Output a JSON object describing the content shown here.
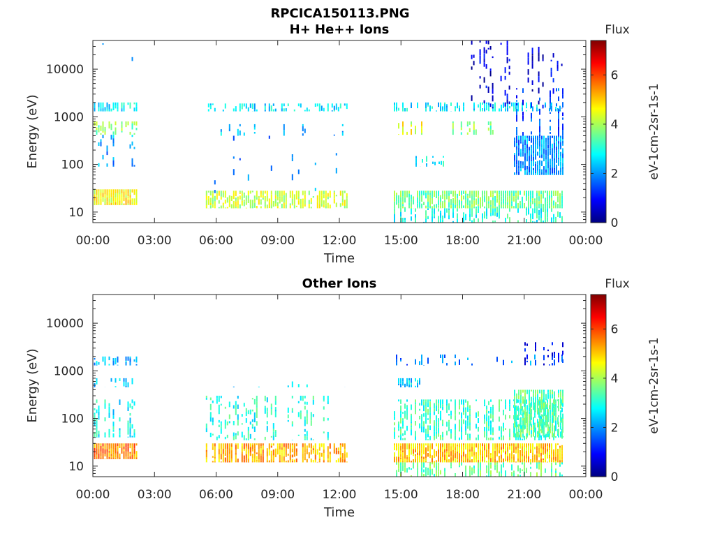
{
  "figure_title": "RPCICA150113.PNG",
  "chart_data": [
    {
      "type": "heatmap",
      "title": "H+ He++ Ions",
      "xlabel": "Time",
      "ylabel": "Energy (eV)",
      "x_ticks": [
        "00:00",
        "03:00",
        "06:00",
        "09:00",
        "12:00",
        "15:00",
        "18:00",
        "21:00",
        "00:00"
      ],
      "xlim_hours": [
        0,
        24
      ],
      "y_scale": "log",
      "ylim": [
        6,
        40000
      ],
      "y_ticks": [
        {
          "value": 10,
          "label": "10"
        },
        {
          "value": 100,
          "label": "100"
        },
        {
          "value": 1000,
          "label": "1000"
        },
        {
          "value": 10000,
          "label": "10000"
        }
      ],
      "colorbar": {
        "title": "Flux",
        "label": "eV-1cm-2sr-1s-1",
        "range": [
          0,
          7.4
        ],
        "ticks": [
          {
            "value": 0,
            "label": "0"
          },
          {
            "value": 2,
            "label": "2"
          },
          {
            "value": 4,
            "label": "4"
          },
          {
            "value": 6,
            "label": "6"
          }
        ],
        "colormap": "jet"
      },
      "data_intervals_hours": [
        [
          0.05,
          2.1
        ],
        [
          5.5,
          12.35
        ],
        [
          14.65,
          22.85
        ]
      ],
      "bands": [
        {
          "t": [
            0.05,
            2.1
          ],
          "e": [
            14,
            30
          ],
          "flux": 4.6,
          "density": 0.95
        },
        {
          "t": [
            0.05,
            2.1
          ],
          "e": [
            420,
            800
          ],
          "flux": 3.7,
          "density": 0.6
        },
        {
          "t": [
            0.05,
            2.1
          ],
          "e": [
            1300,
            2000
          ],
          "flux": 2.7,
          "density": 0.75
        },
        {
          "t": [
            0.05,
            2.1
          ],
          "e": [
            90,
            420
          ],
          "flux": 2.1,
          "density": 0.3
        },
        {
          "t": [
            0.05,
            2.1
          ],
          "e": [
            2500,
            35000
          ],
          "flux": 1.7,
          "density": 0.12
        },
        {
          "t": [
            5.5,
            12.35
          ],
          "e": [
            12,
            28
          ],
          "flux": 4.2,
          "density": 0.7
        },
        {
          "t": [
            5.5,
            12.35
          ],
          "e": [
            1300,
            1900
          ],
          "flux": 2.6,
          "density": 0.55
        },
        {
          "t": [
            5.5,
            12.35
          ],
          "e": [
            400,
            700
          ],
          "flux": 2.4,
          "density": 0.2
        },
        {
          "t": [
            5.5,
            12.35
          ],
          "e": [
            25,
            400
          ],
          "flux": 2.0,
          "density": 0.08
        },
        {
          "t": [
            14.65,
            22.85
          ],
          "e": [
            12,
            28
          ],
          "flux": 3.6,
          "density": 0.85
        },
        {
          "t": [
            14.65,
            22.85
          ],
          "e": [
            6,
            12
          ],
          "flux": 3.0,
          "density": 0.6
        },
        {
          "t": [
            14.65,
            22.85
          ],
          "e": [
            1300,
            2000
          ],
          "flux": 2.6,
          "density": 0.6
        },
        {
          "t": [
            14.65,
            16.0
          ],
          "e": [
            420,
            800
          ],
          "flux": 4.4,
          "density": 0.7
        },
        {
          "t": [
            17.5,
            19.5
          ],
          "e": [
            420,
            800
          ],
          "flux": 3.7,
          "density": 0.45
        },
        {
          "t": [
            15.5,
            17.2
          ],
          "e": [
            90,
            150
          ],
          "flux": 2.7,
          "density": 0.5
        },
        {
          "t": [
            17.8,
            22.85
          ],
          "e": [
            1500,
            40000
          ],
          "flux": 0.7,
          "density": 0.25
        },
        {
          "t": [
            20.5,
            22.85
          ],
          "e": [
            60,
            400
          ],
          "flux": 2.0,
          "density": 0.85
        },
        {
          "t": [
            20.5,
            22.85
          ],
          "e": [
            400,
            4000
          ],
          "flux": 1.4,
          "density": 0.45
        }
      ]
    },
    {
      "type": "heatmap",
      "title": "Other Ions",
      "xlabel": "Time",
      "ylabel": "Energy (eV)",
      "x_ticks": [
        "00:00",
        "03:00",
        "06:00",
        "09:00",
        "12:00",
        "15:00",
        "18:00",
        "21:00",
        "00:00"
      ],
      "xlim_hours": [
        0,
        24
      ],
      "y_scale": "log",
      "ylim": [
        6,
        40000
      ],
      "y_ticks": [
        {
          "value": 10,
          "label": "10"
        },
        {
          "value": 100,
          "label": "100"
        },
        {
          "value": 1000,
          "label": "1000"
        },
        {
          "value": 10000,
          "label": "10000"
        }
      ],
      "colorbar": {
        "title": "Flux",
        "label": "eV-1cm-2sr-1s-1",
        "range": [
          0,
          7.4
        ],
        "ticks": [
          {
            "value": 0,
            "label": "0"
          },
          {
            "value": 2,
            "label": "2"
          },
          {
            "value": 4,
            "label": "4"
          },
          {
            "value": 6,
            "label": "6"
          }
        ],
        "colormap": "jet"
      },
      "data_intervals_hours": [
        [
          0.05,
          2.1
        ],
        [
          5.5,
          12.35
        ],
        [
          14.65,
          22.85
        ]
      ],
      "bands": [
        {
          "t": [
            0.05,
            2.1
          ],
          "e": [
            14,
            30
          ],
          "flux": 5.5,
          "density": 0.95
        },
        {
          "t": [
            0.05,
            2.1
          ],
          "e": [
            40,
            250
          ],
          "flux": 2.8,
          "density": 0.55
        },
        {
          "t": [
            0.05,
            2.1
          ],
          "e": [
            450,
            700
          ],
          "flux": 2.5,
          "density": 0.5
        },
        {
          "t": [
            0.05,
            2.1
          ],
          "e": [
            1300,
            2000
          ],
          "flux": 2.2,
          "density": 0.6
        },
        {
          "t": [
            5.5,
            12.35
          ],
          "e": [
            12,
            30
          ],
          "flux": 5.2,
          "density": 0.75
        },
        {
          "t": [
            5.5,
            12.35
          ],
          "e": [
            35,
            300
          ],
          "flux": 3.0,
          "density": 0.4
        },
        {
          "t": [
            5.5,
            12.35
          ],
          "e": [
            450,
            600
          ],
          "flux": 2.3,
          "density": 0.2
        },
        {
          "t": [
            14.65,
            22.85
          ],
          "e": [
            12,
            30
          ],
          "flux": 5.0,
          "density": 0.9
        },
        {
          "t": [
            14.65,
            22.85
          ],
          "e": [
            6,
            12
          ],
          "flux": 3.5,
          "density": 0.55
        },
        {
          "t": [
            14.65,
            22.85
          ],
          "e": [
            35,
            250
          ],
          "flux": 3.2,
          "density": 0.6
        },
        {
          "t": [
            14.65,
            16.0
          ],
          "e": [
            450,
            700
          ],
          "flux": 2.5,
          "density": 0.6
        },
        {
          "t": [
            14.65,
            22.85
          ],
          "e": [
            1300,
            2200
          ],
          "flux": 1.8,
          "density": 0.35
        },
        {
          "t": [
            20.5,
            22.85
          ],
          "e": [
            40,
            400
          ],
          "flux": 3.4,
          "density": 0.85
        },
        {
          "t": [
            20.5,
            22.85
          ],
          "e": [
            1300,
            4000
          ],
          "flux": 0.9,
          "density": 0.4
        }
      ]
    }
  ]
}
